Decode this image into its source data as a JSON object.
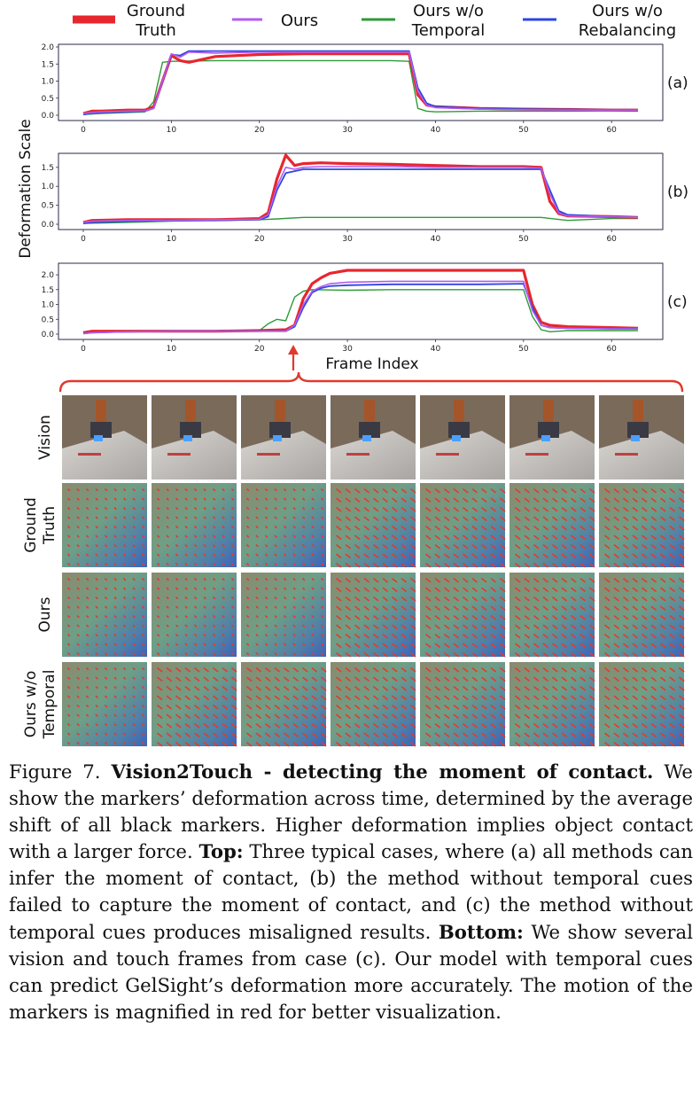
{
  "legend": [
    {
      "label": "Ground Truth",
      "lines": [
        "Ground",
        "Truth"
      ],
      "color": "#e8262d"
    },
    {
      "label": "Ours",
      "lines": [
        "Ours"
      ],
      "color": "#b45cf0"
    },
    {
      "label": "Ours w/o Temporal",
      "lines": [
        "Ours w/o",
        "Temporal"
      ],
      "color": "#2f9a3a"
    },
    {
      "label": "Ours w/o Rebalancing",
      "lines": [
        "Ours w/o",
        "Rebalancing"
      ],
      "color": "#2e45e0"
    }
  ],
  "chart_data": [
    {
      "type": "line",
      "panel": "(a)",
      "xlim": [
        0,
        63
      ],
      "ylim": [
        0,
        2.0
      ],
      "xticks": [
        "0",
        "10",
        "20",
        "30",
        "40",
        "50",
        "60"
      ],
      "yticks": [
        "0.0",
        "0.5",
        "1.0",
        "1.5",
        "2.0"
      ],
      "ylabel": "Deformation Scale",
      "series": [
        {
          "name": "Ground Truth",
          "x": [
            0,
            1,
            2,
            5,
            7,
            8,
            9,
            10,
            11,
            12,
            15,
            20,
            25,
            30,
            35,
            37,
            38,
            39,
            40,
            45,
            50,
            55,
            60,
            63
          ],
          "y": [
            0.05,
            0.12,
            0.12,
            0.15,
            0.15,
            0.25,
            1.0,
            1.75,
            1.6,
            1.55,
            1.72,
            1.78,
            1.8,
            1.8,
            1.8,
            1.8,
            0.6,
            0.3,
            0.25,
            0.2,
            0.18,
            0.17,
            0.15,
            0.15
          ]
        },
        {
          "name": "Ours",
          "x": [
            0,
            1,
            2,
            5,
            7,
            8,
            9,
            10,
            11,
            12,
            15,
            20,
            25,
            30,
            35,
            37,
            38,
            39,
            40,
            45,
            50,
            55,
            60,
            63
          ],
          "y": [
            0.05,
            0.08,
            0.1,
            0.12,
            0.13,
            0.2,
            1.0,
            1.8,
            1.7,
            1.85,
            1.82,
            1.85,
            1.85,
            1.85,
            1.85,
            1.85,
            0.7,
            0.3,
            0.22,
            0.18,
            0.16,
            0.15,
            0.15,
            0.15
          ]
        },
        {
          "name": "Ours w/o Temporal",
          "x": [
            0,
            2,
            5,
            7,
            8,
            9,
            10,
            15,
            20,
            25,
            30,
            35,
            37,
            38,
            39,
            40,
            45,
            50,
            55,
            60,
            63
          ],
          "y": [
            0.02,
            0.05,
            0.08,
            0.1,
            0.4,
            1.55,
            1.58,
            1.6,
            1.6,
            1.6,
            1.6,
            1.6,
            1.58,
            0.2,
            0.12,
            0.1,
            0.12,
            0.12,
            0.12,
            0.13,
            0.12
          ]
        },
        {
          "name": "Ours w/o Rebalancing",
          "x": [
            0,
            1,
            2,
            5,
            7,
            8,
            9,
            10,
            11,
            12,
            15,
            20,
            25,
            30,
            35,
            37,
            38,
            39,
            40,
            45,
            50,
            55,
            60,
            63
          ],
          "y": [
            0.02,
            0.06,
            0.08,
            0.1,
            0.12,
            0.2,
            1.0,
            1.78,
            1.75,
            1.88,
            1.88,
            1.88,
            1.88,
            1.88,
            1.88,
            1.88,
            0.8,
            0.35,
            0.25,
            0.2,
            0.18,
            0.17,
            0.16,
            0.16
          ]
        }
      ]
    },
    {
      "type": "line",
      "panel": "(b)",
      "xlim": [
        0,
        63
      ],
      "ylim": [
        0,
        1.8
      ],
      "xticks": [
        "0",
        "10",
        "20",
        "30",
        "40",
        "50",
        "60"
      ],
      "yticks": [
        "0.0",
        "0.5",
        "1.0",
        "1.5"
      ],
      "series": [
        {
          "name": "Ground Truth",
          "x": [
            0,
            1,
            5,
            10,
            15,
            20,
            21,
            22,
            23,
            24,
            25,
            27,
            30,
            35,
            40,
            45,
            50,
            52,
            53,
            54,
            55,
            60,
            63
          ],
          "y": [
            0.05,
            0.1,
            0.12,
            0.12,
            0.12,
            0.15,
            0.3,
            1.2,
            1.82,
            1.55,
            1.6,
            1.62,
            1.6,
            1.58,
            1.55,
            1.52,
            1.52,
            1.5,
            0.6,
            0.28,
            0.22,
            0.2,
            0.18
          ]
        },
        {
          "name": "Ours",
          "x": [
            0,
            1,
            5,
            10,
            15,
            20,
            21,
            22,
            23,
            24,
            25,
            27,
            30,
            35,
            40,
            45,
            50,
            52,
            53,
            54,
            55,
            60,
            63
          ],
          "y": [
            0.05,
            0.08,
            0.1,
            0.1,
            0.12,
            0.13,
            0.25,
            1.0,
            1.5,
            1.45,
            1.5,
            1.52,
            1.52,
            1.52,
            1.5,
            1.5,
            1.5,
            1.48,
            0.8,
            0.3,
            0.22,
            0.2,
            0.18
          ]
        },
        {
          "name": "Ours w/o Temporal",
          "x": [
            0,
            5,
            10,
            15,
            20,
            22,
            25,
            30,
            35,
            40,
            45,
            50,
            52,
            55,
            60,
            63
          ],
          "y": [
            0.02,
            0.05,
            0.08,
            0.1,
            0.12,
            0.14,
            0.18,
            0.18,
            0.18,
            0.18,
            0.18,
            0.18,
            0.18,
            0.1,
            0.15,
            0.15
          ]
        },
        {
          "name": "Ours w/o Rebalancing",
          "x": [
            0,
            1,
            5,
            10,
            15,
            20,
            21,
            22,
            23,
            24,
            25,
            27,
            30,
            35,
            40,
            45,
            50,
            52,
            53,
            54,
            55,
            60,
            63
          ],
          "y": [
            0.02,
            0.05,
            0.08,
            0.1,
            0.1,
            0.12,
            0.2,
            0.9,
            1.35,
            1.4,
            1.45,
            1.45,
            1.45,
            1.45,
            1.45,
            1.45,
            1.45,
            1.45,
            0.9,
            0.35,
            0.25,
            0.2,
            0.18
          ]
        }
      ]
    },
    {
      "type": "line",
      "panel": "(c)",
      "xlim": [
        0,
        63
      ],
      "ylim": [
        0,
        2.3
      ],
      "xticks": [
        "0",
        "10",
        "20",
        "30",
        "40",
        "50",
        "60"
      ],
      "yticks": [
        "0.0",
        "0.5",
        "1.0",
        "1.5",
        "2.0"
      ],
      "xlabel": "Frame Index",
      "series": [
        {
          "name": "Ground Truth",
          "x": [
            0,
            1,
            5,
            10,
            15,
            20,
            23,
            24,
            25,
            26,
            27,
            28,
            30,
            35,
            40,
            45,
            50,
            51,
            52,
            53,
            55,
            60,
            63
          ],
          "y": [
            0.05,
            0.1,
            0.1,
            0.1,
            0.1,
            0.12,
            0.15,
            0.3,
            1.2,
            1.7,
            1.9,
            2.05,
            2.15,
            2.15,
            2.15,
            2.15,
            2.15,
            1.0,
            0.4,
            0.3,
            0.25,
            0.22,
            0.2
          ]
        },
        {
          "name": "Ours",
          "x": [
            0,
            1,
            5,
            10,
            15,
            20,
            23,
            24,
            25,
            26,
            27,
            28,
            30,
            35,
            40,
            45,
            50,
            51,
            52,
            53,
            55,
            60,
            63
          ],
          "y": [
            0.02,
            0.05,
            0.08,
            0.1,
            0.1,
            0.1,
            0.1,
            0.3,
            1.0,
            1.45,
            1.6,
            1.7,
            1.75,
            1.78,
            1.78,
            1.78,
            1.78,
            0.8,
            0.3,
            0.22,
            0.2,
            0.18,
            0.18
          ]
        },
        {
          "name": "Ours w/o Temporal",
          "x": [
            0,
            1,
            5,
            10,
            15,
            20,
            21,
            22,
            23,
            24,
            25,
            26,
            30,
            35,
            40,
            45,
            50,
            51,
            52,
            53,
            55,
            60,
            63
          ],
          "y": [
            0.02,
            0.05,
            0.08,
            0.1,
            0.1,
            0.12,
            0.35,
            0.5,
            0.45,
            1.25,
            1.45,
            1.5,
            1.48,
            1.5,
            1.5,
            1.5,
            1.5,
            0.6,
            0.15,
            0.08,
            0.12,
            0.12,
            0.12
          ]
        },
        {
          "name": "Ours w/o Rebalancing",
          "x": [
            0,
            1,
            5,
            10,
            15,
            20,
            23,
            24,
            25,
            26,
            27,
            28,
            30,
            35,
            40,
            45,
            50,
            51,
            52,
            53,
            55,
            60,
            63
          ],
          "y": [
            0.02,
            0.05,
            0.08,
            0.1,
            0.1,
            0.1,
            0.1,
            0.25,
            0.9,
            1.4,
            1.55,
            1.62,
            1.65,
            1.68,
            1.68,
            1.68,
            1.7,
            0.9,
            0.3,
            0.22,
            0.2,
            0.18,
            0.18
          ]
        }
      ]
    }
  ],
  "grid": {
    "row_labels": [
      [
        "Vision"
      ],
      [
        "Ground",
        "Truth"
      ],
      [
        "Ours"
      ],
      [
        "Ours w/o",
        "Temporal"
      ]
    ],
    "row_kinds": [
      "vision",
      "touch",
      "touch",
      "touch"
    ],
    "columns": 7,
    "deformation": [
      [
        0,
        0,
        0,
        1,
        1,
        1,
        1
      ],
      [
        0,
        0,
        0,
        1,
        1,
        1,
        1
      ],
      [
        0,
        1,
        1,
        1,
        1,
        1,
        1
      ]
    ],
    "colors": {
      "marker": "#e33b2e",
      "vision_bg": "#7a6a5a"
    }
  },
  "caption": {
    "figure_label": "Figure 7.",
    "bold_title": "Vision2Touch - detecting the moment of contact.",
    "text1": "We show the markers’ deformation across time, determined by the average shift of all black markers. Higher deformation implies object contact with a larger force.",
    "top_label": "Top:",
    "text2": "Three typical cases, where (a) all methods can infer the moment of contact, (b) the method without temporal cues failed to capture the moment of contact, and (c) the method without temporal cues produces misaligned results.",
    "bottom_label": "Bottom:",
    "text3": "We show several vision and touch frames from case (c). Our model with temporal cues can predict GelSight’s deformation more accurately. The motion of the markers is magnified in red for better visualization."
  }
}
